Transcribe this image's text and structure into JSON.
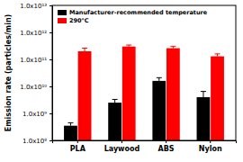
{
  "chart_data": {
    "type": "bar",
    "y_label": "Emission rate (particles/min)",
    "categories": [
      "PLA",
      "Laywood",
      "ABS",
      "Nylon"
    ],
    "series": [
      {
        "name": "Manufacturer-recommended temperature",
        "color": "#000000",
        "values": [
          350000000,
          2500000000,
          16000000000,
          4000000000
        ],
        "errors": [
          100000000,
          800000000,
          5000000000,
          2500000000
        ]
      },
      {
        "name": "290°C",
        "color": "#ff0000",
        "values": [
          200000000000,
          300000000000,
          260000000000,
          130000000000
        ],
        "errors": [
          60000000000,
          40000000000,
          40000000000,
          30000000000
        ]
      }
    ],
    "log": "y",
    "ylim": [
      100000000,
      10000000000000
    ],
    "yticks": [
      {
        "value": 100000000,
        "label": "1.0x10⁸"
      },
      {
        "value": 1000000000,
        "label": "1.0x10⁹"
      },
      {
        "value": 10000000000,
        "label": "1.0x10¹⁰"
      },
      {
        "value": 100000000000,
        "label": "1.0x10¹¹"
      },
      {
        "value": 1000000000000,
        "label": "1.0x10¹²"
      },
      {
        "value": 10000000000000,
        "label": "1.0x10¹³"
      }
    ],
    "grid": false,
    "legend": "upper left"
  }
}
